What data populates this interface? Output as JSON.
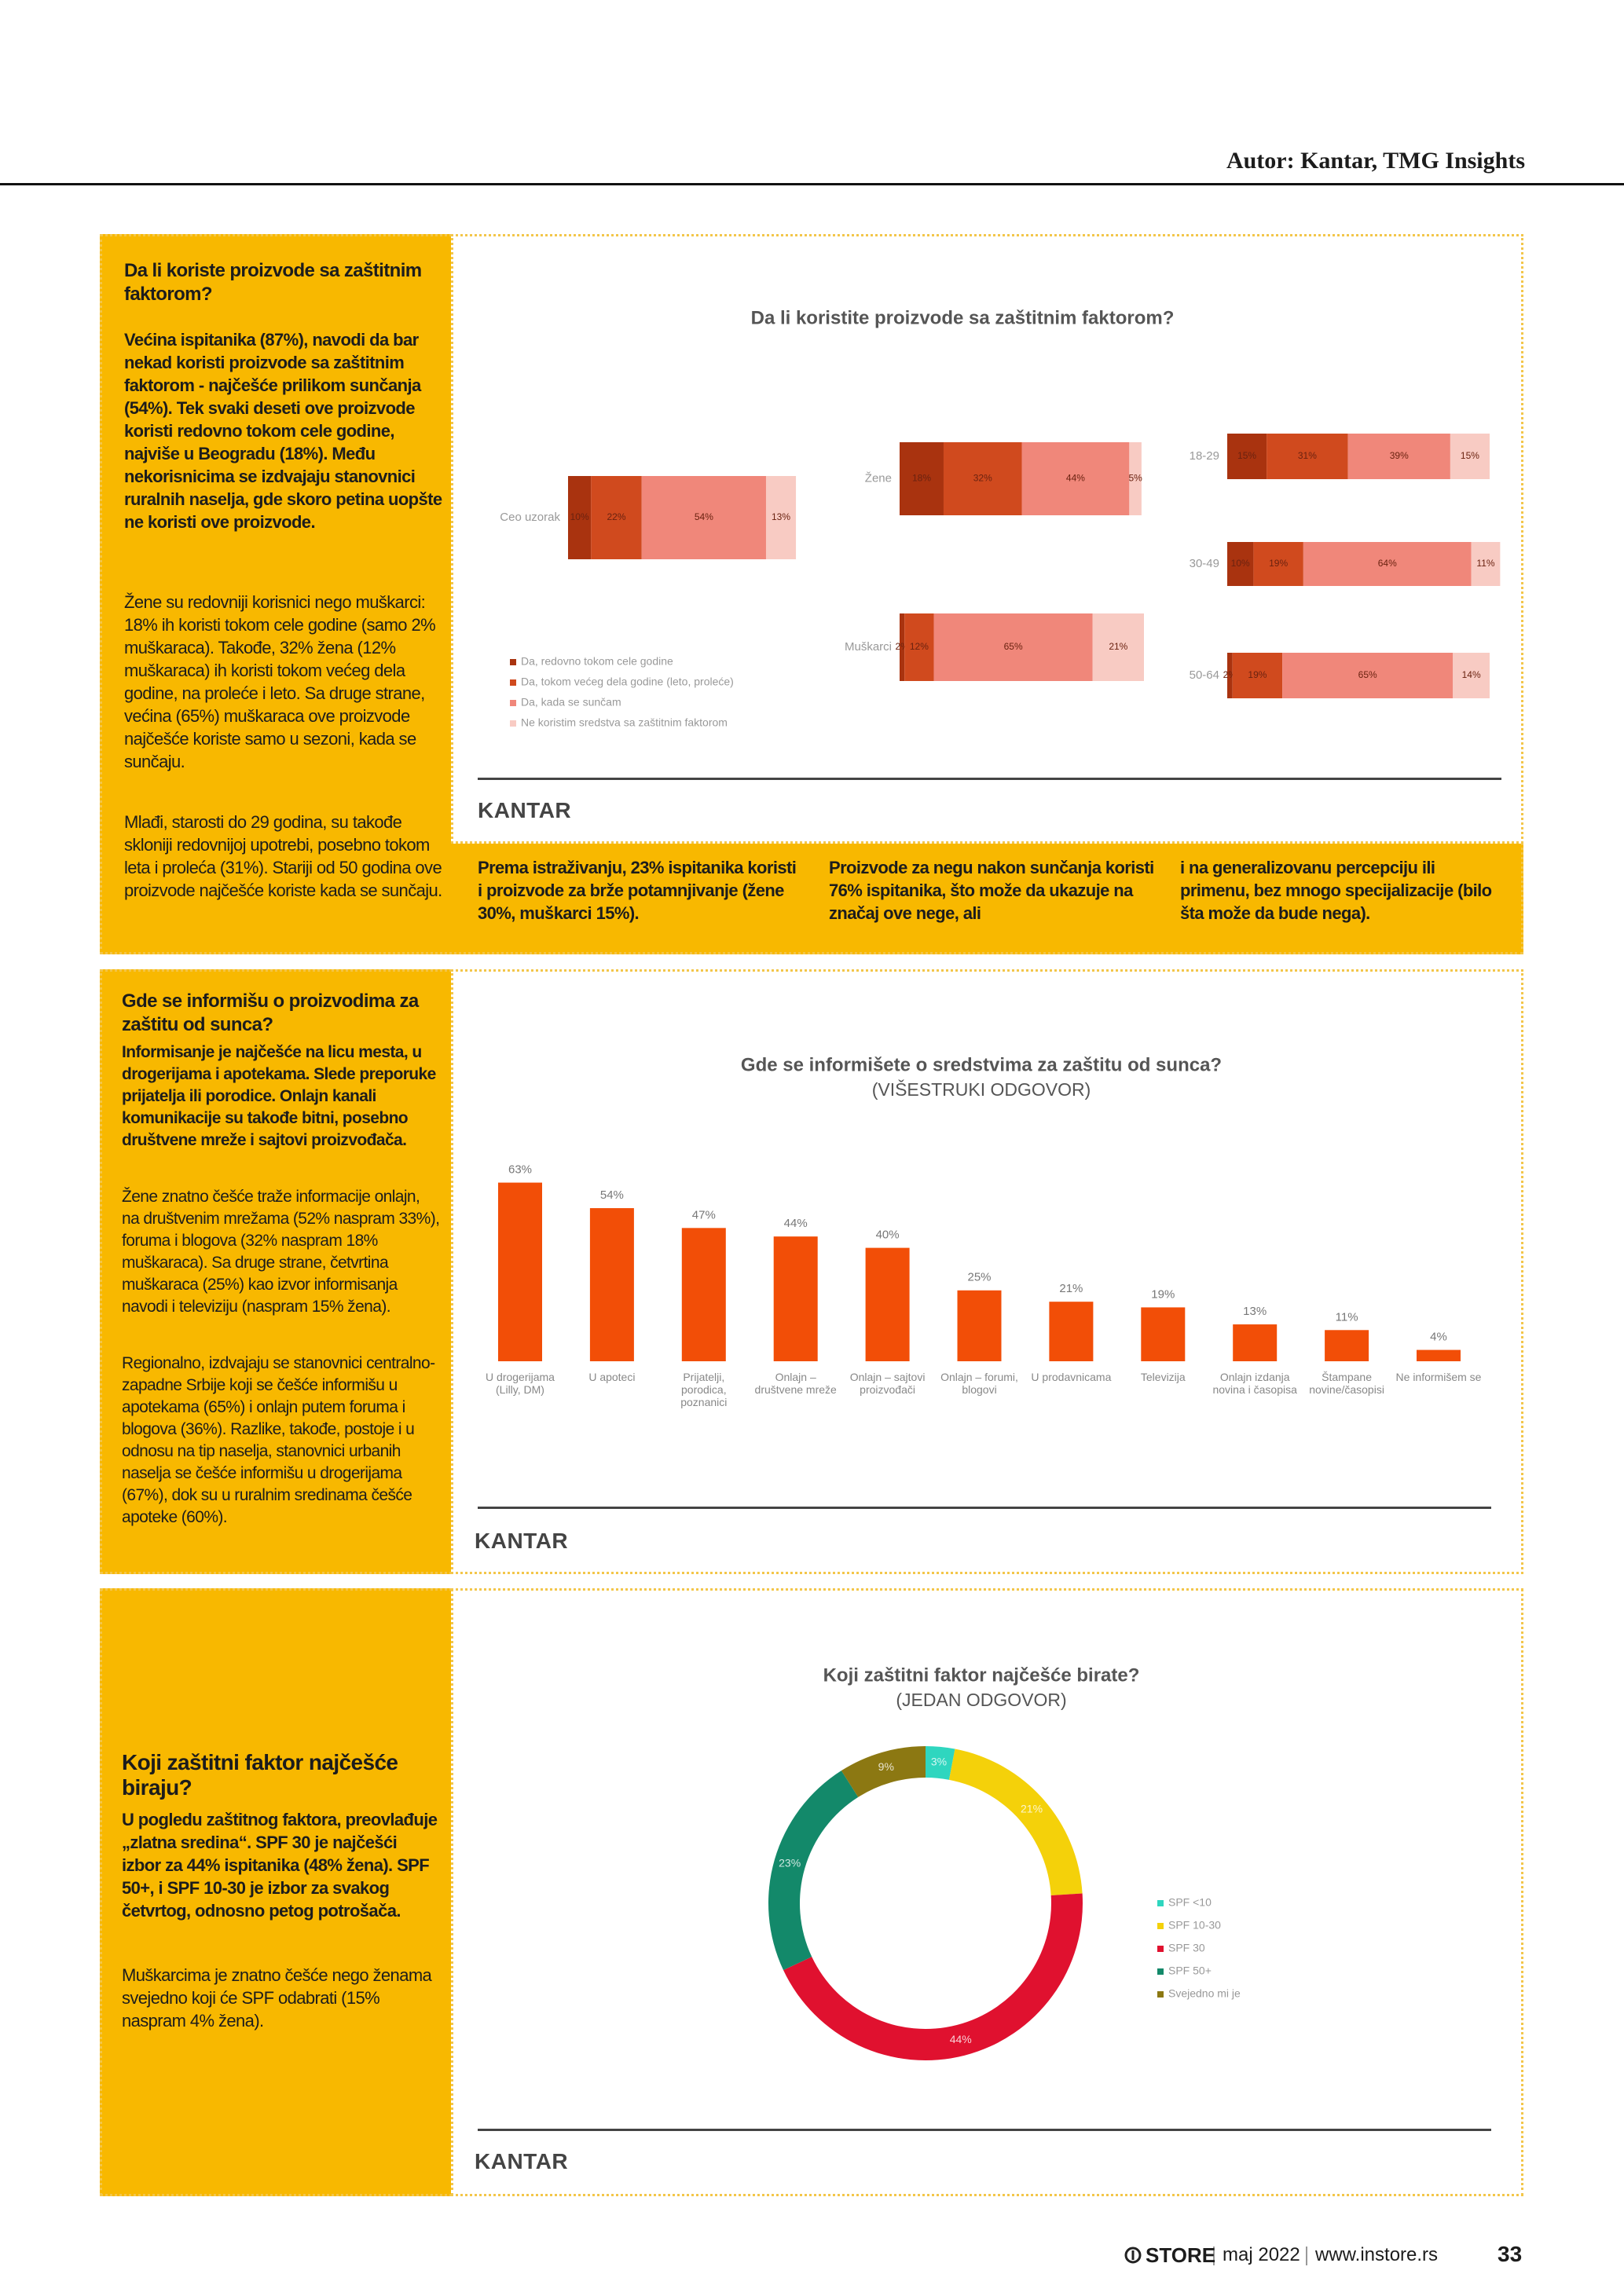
{
  "header": {
    "author": "Autor: Kantar, TMG Insights"
  },
  "sections": [
    {
      "question": "Da li koriste proizvode sa zaštitnim faktorom?",
      "lead": "Većina ispitanika (87%), navodi da bar nekad koristi proizvode sa zaštitnim faktorom - najčešće prilikom sunčanja (54%). Tek svaki deseti ove proizvode koristi redovno tokom cele godine, najviše u Beogradu (18%). Među nekorisnicima se izdvajaju stanovnici ruralnih naselja, gde skoro petina uopšte ne koristi ove proizvode.",
      "paragraphs": [
        "Žene su redovniji korisnici nego muškarci: 18% ih koristi tokom cele godine (samo 2% muškaraca). Takođe, 32% žena (12% muškaraca) ih koristi tokom većeg dela godine, na proleće i leto. Sa druge strane, većina (65%) muškaraca ove proizvode najčešće koriste samo u sezoni, kada se sunčaju.",
        "Mlađi, starosti do 29 godina, su takođe skloniji redovnijoj upotrebi, posebno tokom leta i proleća (31%). Stariji od 50 godina ove proizvode najčešće koriste kada se sunčaju."
      ],
      "notes": [
        "Prema istraživanju, 23% ispitanika koristi i proizvode za brže potamnjivanje (žene 30%, muškarci 15%).",
        "Proizvode za negu nakon sunčanja koristi 76% ispitanika, što može da ukazuje na značaj ove nege, ali",
        "i na generalizovanu percepciju ili primenu, bez mnogo specijalizacije (bilo šta može da bude nega)."
      ]
    },
    {
      "question": "Gde se informišu o proizvodima za zaštitu od sunca?",
      "lead": "Informisanje je najčešće na licu mesta, u drogerijama i apotekama. Slede preporuke prijatelja ili porodice. Onlajn kanali komunikacije su takođe bitni, posebno društvene mreže i sajtovi proizvođača.",
      "paragraphs": [
        "Žene znatno češće traže informacije onlajn, na društvenim mrežama (52% naspram 33%), foruma i blogova (32% naspram 18% muškaraca). Sa druge strane, četvrtina muškaraca (25%) kao izvor informisanja navodi i televiziju (naspram 15% žena).",
        "Regionalno, izdvajaju se stanovnici centralno-zapadne Srbije koji se češće informišu u apotekama (65%) i onlajn putem foruma i blogova (36%). Razlike, takođe, postoje i u odnosu na tip naselja, stanovnici urbanih naselja se češće informišu u drogerijama (67%), dok su u ruralnim sredinama češće apoteke (60%)."
      ]
    },
    {
      "question": "Koji zaštitni faktor najčešće biraju?",
      "lead": "U pogledu zaštitnog faktora, preovlađuje „zlatna sredina“. SPF 30 je najčešći izbor za 44% ispitanika (48% žena). SPF 50+, i SPF 10-30 je izbor za svakog četvrtog, odnosno petog potrošača.",
      "paragraphs": [
        "Muškarcima je znatno češće nego ženama svejedno koji će SPF odabrati (15% naspram 4% žena)."
      ]
    }
  ],
  "chart_data": [
    {
      "type": "bar",
      "stacked": true,
      "orientation": "horizontal",
      "title": "Da li koristite proizvode sa zaštitnim faktorom?",
      "categories": [
        "Ceo uzorak",
        "Žene",
        "Muškarci",
        "18-29",
        "30-49",
        "50-64"
      ],
      "series": [
        {
          "name": "Da, redovno tokom cele godine",
          "color": "#a9330f",
          "values": [
            10,
            18,
            2,
            15,
            10,
            2
          ],
          "value_labels": [
            "10%",
            "18%",
            "2%",
            "15%",
            "10%",
            "2%"
          ]
        },
        {
          "name": "Da, tokom većeg dela godine (leto, proleće)",
          "color": "#d04a1e",
          "values": [
            22,
            32,
            12,
            31,
            19,
            19
          ],
          "value_labels": [
            "22%",
            "32%",
            "12%",
            "31%",
            "19%",
            "19%"
          ]
        },
        {
          "name": "Da, kada se sunčam",
          "color": "#f0877a",
          "values": [
            54,
            44,
            65,
            39,
            64,
            65
          ],
          "value_labels": [
            "54%",
            "44%",
            "65%",
            "39%",
            "64%",
            "65%"
          ]
        },
        {
          "name": "Ne koristim sredstva sa zaštitnim faktorom",
          "color": "#f8cbc3",
          "values": [
            13,
            5,
            21,
            15,
            11,
            14
          ],
          "value_labels": [
            "13%",
            "5%",
            "21%",
            "15%",
            "11%",
            "14%"
          ]
        }
      ]
    },
    {
      "type": "bar",
      "stacked": false,
      "title": "Gde se informišete o sredstvima za zaštitu od sunca?",
      "subtitle": "(VIŠESTRUKI ODGOVOR)",
      "categories": [
        "U drogerijama (Lilly, DM)",
        "U apoteci",
        "Prijatelji, porodica, poznanici",
        "Onlajn – društvene mreže",
        "Onlajn – sajtovi proizvođači",
        "Onlajn – forumi, blogovi",
        "U prodavnicama",
        "Televizija",
        "Onlajn izdanja novina i časopisa",
        "Štampane novine/časopisi",
        "Ne informišem se"
      ],
      "values": [
        63,
        54,
        47,
        44,
        40,
        25,
        21,
        19,
        13,
        11,
        4
      ],
      "value_labels": [
        "63%",
        "54%",
        "47%",
        "44%",
        "40%",
        "25%",
        "21%",
        "19%",
        "13%",
        "11%",
        "4%"
      ],
      "color": "#f24e07"
    },
    {
      "type": "pie",
      "donut": true,
      "title": "Koji zaštitni faktor najčešće birate?",
      "subtitle": "(JEDAN ODGOVOR)",
      "categories": [
        "SPF <10",
        "SPF 10-30",
        "SPF 30",
        "SPF 50+",
        "Svejedno mi je"
      ],
      "values": [
        3,
        21,
        44,
        23,
        9
      ],
      "value_labels": [
        "3%",
        "21%",
        "44%",
        "23%",
        "9%"
      ],
      "colors": [
        "#2fd6bf",
        "#f4d10a",
        "#e0112f",
        "#13896a",
        "#8c7812"
      ]
    }
  ],
  "brand": "KANTAR",
  "footer": {
    "logo": "STORE",
    "issue": "maj 2022",
    "site": "www.instore.rs",
    "page": 33
  }
}
